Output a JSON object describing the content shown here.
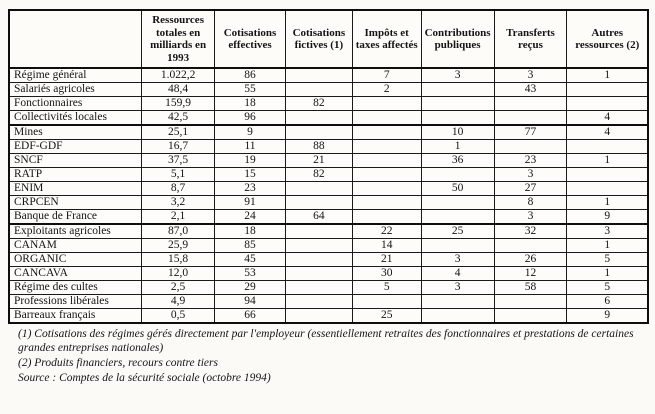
{
  "table": {
    "columns": [
      "",
      "Ressources totales en milliards en 1993",
      "Cotisations effectives",
      "Cotisations fictives (1)",
      "Impôts et taxes affectés",
      "Contributions publiques",
      "Transferts reçus",
      "Autres ressources (2)"
    ],
    "rows": [
      {
        "label": "Régime général",
        "values": [
          "1.022,2",
          "86",
          "",
          "7",
          "3",
          "3",
          "1"
        ],
        "group_start": false
      },
      {
        "label": "Salariés agricoles",
        "values": [
          "48,4",
          "55",
          "",
          "2",
          "",
          "43",
          ""
        ],
        "group_start": false
      },
      {
        "label": "Fonctionnaires",
        "values": [
          "159,9",
          "18",
          "82",
          "",
          "",
          "",
          ""
        ],
        "group_start": false
      },
      {
        "label": "Collectivités locales",
        "values": [
          "42,5",
          "96",
          "",
          "",
          "",
          "",
          "4"
        ],
        "group_start": false
      },
      {
        "label": "Mines",
        "values": [
          "25,1",
          "9",
          "",
          "",
          "10",
          "77",
          "4"
        ],
        "group_start": true
      },
      {
        "label": "EDF-GDF",
        "values": [
          "16,7",
          "11",
          "88",
          "",
          "1",
          "",
          ""
        ],
        "group_start": false
      },
      {
        "label": "SNCF",
        "values": [
          "37,5",
          "19",
          "21",
          "",
          "36",
          "23",
          "1"
        ],
        "group_start": false
      },
      {
        "label": "RATP",
        "values": [
          "5,1",
          "15",
          "82",
          "",
          "",
          "3",
          ""
        ],
        "group_start": false
      },
      {
        "label": "ENIM",
        "values": [
          "8,7",
          "23",
          "",
          "",
          "50",
          "27",
          ""
        ],
        "group_start": false
      },
      {
        "label": "CRPCEN",
        "values": [
          "3,2",
          "91",
          "",
          "",
          "",
          "8",
          "1"
        ],
        "group_start": false
      },
      {
        "label": "Banque de France",
        "values": [
          "2,1",
          "24",
          "64",
          "",
          "",
          "3",
          "9"
        ],
        "group_start": false
      },
      {
        "label": "Exploitants agricoles",
        "values": [
          "87,0",
          "18",
          "",
          "22",
          "25",
          "32",
          "3"
        ],
        "group_start": true
      },
      {
        "label": "CANAM",
        "values": [
          "25,9",
          "85",
          "",
          "14",
          "",
          "",
          "1"
        ],
        "group_start": false
      },
      {
        "label": "ORGANIC",
        "values": [
          "15,8",
          "45",
          "",
          "21",
          "3",
          "26",
          "5"
        ],
        "group_start": false
      },
      {
        "label": "CANCAVA",
        "values": [
          "12,0",
          "53",
          "",
          "30",
          "4",
          "12",
          "1"
        ],
        "group_start": false
      },
      {
        "label": "Régime des cultes",
        "values": [
          "2,5",
          "29",
          "",
          "5",
          "3",
          "58",
          "5"
        ],
        "group_start": false
      },
      {
        "label": "Professions libérales",
        "values": [
          "4,9",
          "94",
          "",
          "",
          "",
          "",
          "6"
        ],
        "group_start": false
      },
      {
        "label": "Barreaux français",
        "values": [
          "0,5",
          "66",
          "",
          "25",
          "",
          "",
          "9"
        ],
        "group_start": false
      }
    ]
  },
  "footnotes": [
    "(1) Cotisations des régimes gérés directement par l'employeur (essentiellement retraites des fonctionnaires et prestations de certaines grandes entreprises nationales)",
    "(2) Produits financiers, recours contre tiers",
    "Source : Comptes de la sécurité sociale (octobre 1994)"
  ],
  "colors": {
    "paper": "#fbfaf6",
    "ink": "#141414",
    "border": "#0e0e0e"
  }
}
